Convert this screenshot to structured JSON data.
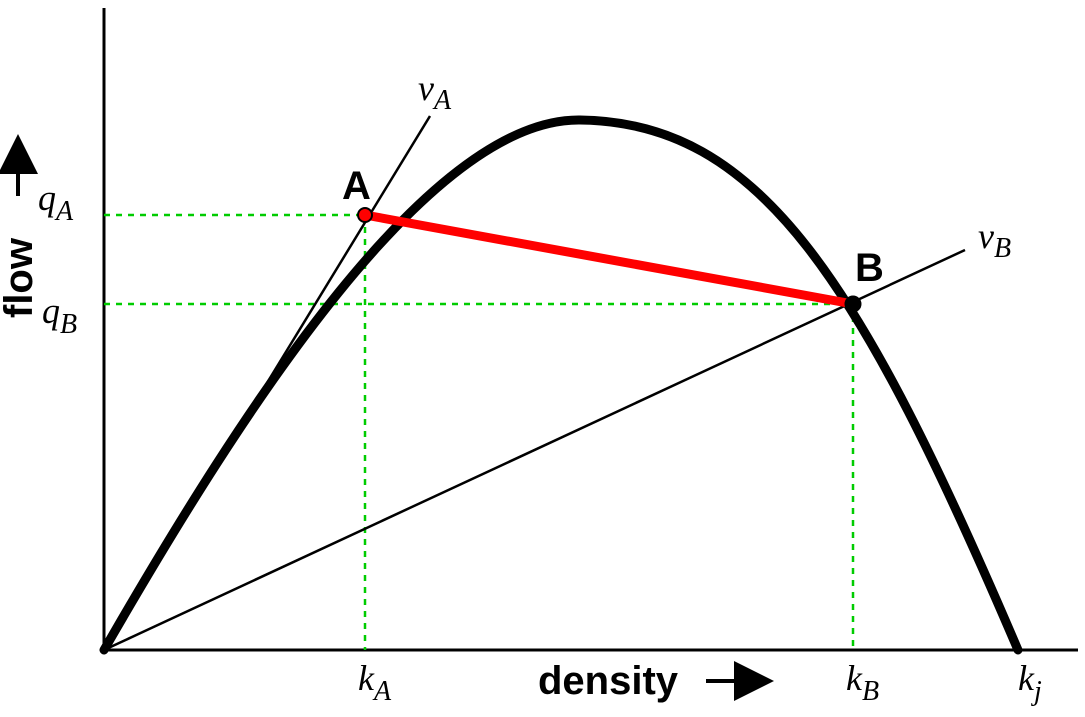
{
  "axes": {
    "x_title": "density",
    "y_title": "flow"
  },
  "points": {
    "a": {
      "label": "A",
      "k": "k",
      "k_sub": "A",
      "q": "q",
      "q_sub": "A",
      "density": 0.286,
      "flow": 0.825
    },
    "b": {
      "label": "B",
      "k": "k",
      "k_sub": "B",
      "q": "q",
      "q_sub": "B",
      "density": 0.818,
      "flow": 0.656
    }
  },
  "jam_density": {
    "k": "k",
    "k_sub": "j",
    "density": 1.0
  },
  "speed_lines": {
    "va": {
      "v": "v",
      "v_sub": "A"
    },
    "vb": {
      "v": "v",
      "v_sub": "B"
    }
  },
  "colors": {
    "curve": "#000000",
    "chord": "#ff0000",
    "guides": "#00cc00",
    "axes": "#000000"
  }
}
